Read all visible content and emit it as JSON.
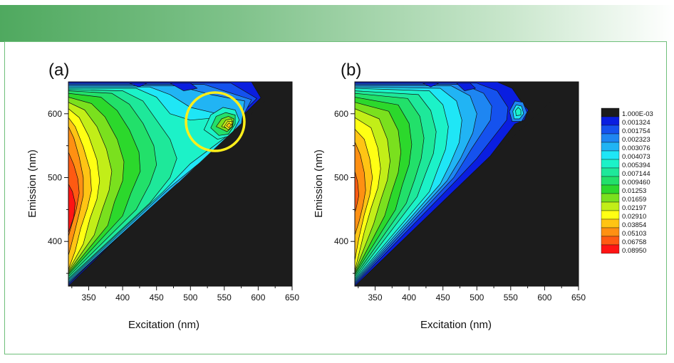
{
  "colors": {
    "header_start": "#4fa95f",
    "header_end": "#ffffff",
    "frame_border": "#6fbf7a",
    "masked_region": "#1c1c1c",
    "highlight_circle": "#ffef1a"
  },
  "chart_data": [
    {
      "type": "heatmap",
      "panel_label": "(a)",
      "xlabel": "Excitation (nm)",
      "ylabel": "Emission (nm)",
      "xlim": [
        320,
        650
      ],
      "ylim": [
        330,
        650
      ],
      "xticks": [
        350,
        400,
        450,
        500,
        550,
        600,
        650
      ],
      "yticks": [
        400,
        500,
        600
      ],
      "annotation": {
        "shape": "circle",
        "center": [
          540,
          581
        ],
        "note": "highlighted local maximum near Ex 555 nm / Em 585 nm"
      },
      "peaks": [
        {
          "ex": 320,
          "em": 440,
          "level": 0.0895
        },
        {
          "ex": 555,
          "em": 585,
          "level": 0.0385
        },
        {
          "ex": 585,
          "em": 628,
          "level": 0.003
        }
      ]
    },
    {
      "type": "heatmap",
      "panel_label": "(b)",
      "xlabel": "Excitation (nm)",
      "ylabel": "Emission (nm)",
      "xlim": [
        320,
        650
      ],
      "ylim": [
        330,
        650
      ],
      "xticks": [
        350,
        400,
        450,
        500,
        550,
        600,
        650
      ],
      "yticks": [
        400,
        500,
        600
      ],
      "peaks": [
        {
          "ex": 320,
          "em": 445,
          "level": 0.0675
        },
        {
          "ex": 560,
          "em": 605,
          "level": 0.0035
        }
      ]
    }
  ],
  "colorbar": {
    "levels": [
      "1.000E-03",
      "0.001324",
      "0.001754",
      "0.002323",
      "0.003076",
      "0.004073",
      "0.005394",
      "0.007144",
      "0.009460",
      "0.01253",
      "0.01659",
      "0.02197",
      "0.02910",
      "0.03854",
      "0.05103",
      "0.06758",
      "0.08950"
    ],
    "colors": [
      "#1c1c1c",
      "#0a1ee0",
      "#1552ee",
      "#1e86f2",
      "#21b4f4",
      "#1fe6f6",
      "#1cf2c8",
      "#1ee89a",
      "#22e06a",
      "#2cd82c",
      "#7ae01e",
      "#c2ee18",
      "#ffff14",
      "#ffc414",
      "#ff9012",
      "#ff5a12",
      "#ff1414"
    ]
  }
}
